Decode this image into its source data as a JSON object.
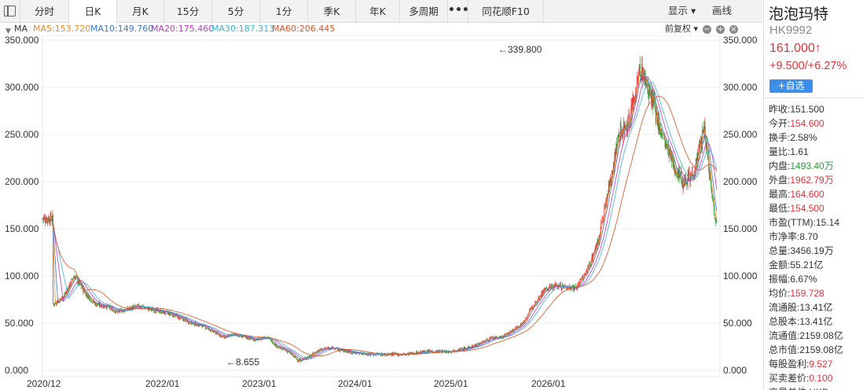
{
  "toolbar": {
    "tabs": [
      {
        "label": "分时",
        "active": false
      },
      {
        "label": "日K",
        "active": true
      },
      {
        "label": "月K",
        "active": false
      },
      {
        "label": "15分",
        "active": false
      },
      {
        "label": "5分",
        "active": false
      },
      {
        "label": "1分",
        "active": false
      },
      {
        "label": "季K",
        "active": false
      },
      {
        "label": "年K",
        "active": false
      },
      {
        "label": "多周期",
        "active": false
      }
    ],
    "more_label": "•••",
    "f10_label": "同花顺F10",
    "display_label": "显示 ▾",
    "draw_label": "画线"
  },
  "ma_bar": {
    "label": "MA",
    "items": [
      {
        "text": "MA5:153.720",
        "color": "#f08a24"
      },
      {
        "text": "MA10:149.760",
        "color": "#3a7bd5"
      },
      {
        "text": "MA20:175.460",
        "color": "#c03ac0"
      },
      {
        "text": "MA30:187.313",
        "color": "#38b6d8"
      },
      {
        "text": "MA60:206.445",
        "color": "#e0501e"
      }
    ],
    "adjust_label": "前复权 ▾",
    "zoom_out": "−",
    "zoom_in": "+",
    "close": "×"
  },
  "chart_data": {
    "type": "candlestick",
    "y_ticks": [
      "350.000",
      "300.000",
      "250.000",
      "200.000",
      "150.000",
      "100.000",
      "50.000",
      "0.000"
    ],
    "ylim": [
      0,
      350
    ],
    "x_ticks": [
      "2020/12",
      "2022/01",
      "2023/01",
      "2024/01",
      "2025/01",
      "2026/01"
    ],
    "annotations": {
      "max_label": "←339.800",
      "max_value": 339.8,
      "min_label": "←8.655",
      "min_value": 8.655
    },
    "series_close_approx": [
      {
        "x": "2020/12",
        "y": 70
      },
      {
        "x": "2021/02",
        "y": 100
      },
      {
        "x": "2021/04",
        "y": 70
      },
      {
        "x": "2021/06",
        "y": 62
      },
      {
        "x": "2021/09",
        "y": 65
      },
      {
        "x": "2022/01",
        "y": 50
      },
      {
        "x": "2022/04",
        "y": 35
      },
      {
        "x": "2022/07",
        "y": 32
      },
      {
        "x": "2022/10",
        "y": 20
      },
      {
        "x": "2022/11",
        "y": 10
      },
      {
        "x": "2023/01",
        "y": 22
      },
      {
        "x": "2023/06",
        "y": 17
      },
      {
        "x": "2024/01",
        "y": 20
      },
      {
        "x": "2024/06",
        "y": 35
      },
      {
        "x": "2024/09",
        "y": 70
      },
      {
        "x": "2024/12",
        "y": 88
      },
      {
        "x": "2025/03",
        "y": 135
      },
      {
        "x": "2025/05",
        "y": 250
      },
      {
        "x": "2025/07",
        "y": 320
      },
      {
        "x": "2025/09",
        "y": 250
      },
      {
        "x": "2025/11",
        "y": 200
      },
      {
        "x": "2026/01",
        "y": 255
      },
      {
        "x": "2026/02",
        "y": 161
      }
    ],
    "colors": {
      "up": "#e2313b",
      "down": "#2a9d3a"
    }
  },
  "stock": {
    "name": "泡泡玛特",
    "code": "HK9992",
    "price": "161.000↑",
    "change": "+9.500/+6.27%",
    "add_watch": "+自选",
    "stats": [
      {
        "label": "昨收:",
        "value": "151.500",
        "cls": ""
      },
      {
        "label": "今开:",
        "value": "154.600",
        "cls": "v-red"
      },
      {
        "label": "换手:",
        "value": "2.58%",
        "cls": ""
      },
      {
        "label": "量比:",
        "value": "1.61",
        "cls": ""
      },
      {
        "label": "内盘:",
        "value": "1493.40万",
        "cls": "v-green"
      },
      {
        "label": "外盘:",
        "value": "1962.79万",
        "cls": "v-red"
      },
      {
        "label": "最高:",
        "value": "164.600",
        "cls": "v-red"
      },
      {
        "label": "最低:",
        "value": "154.500",
        "cls": "v-red"
      },
      {
        "label": "市盈(TTM):",
        "value": "15.14",
        "cls": ""
      },
      {
        "label": "市净率:",
        "value": "8.70",
        "cls": ""
      },
      {
        "label": "总量:",
        "value": "3456.19万",
        "cls": ""
      },
      {
        "label": "金额:",
        "value": "55.21亿",
        "cls": ""
      },
      {
        "label": "振幅:",
        "value": "6.67%",
        "cls": ""
      },
      {
        "label": "均价:",
        "value": "159.728",
        "cls": "v-red"
      },
      {
        "label": "流通股:",
        "value": "13.41亿",
        "cls": ""
      },
      {
        "label": "总股本:",
        "value": "13.41亿",
        "cls": ""
      },
      {
        "label": "流通值:",
        "value": "2159.08亿",
        "cls": ""
      },
      {
        "label": "总市值:",
        "value": "2159.08亿",
        "cls": ""
      },
      {
        "label": "每股盈利:",
        "value": "9.527",
        "cls": "v-red"
      },
      {
        "label": "买卖差价:",
        "value": "0.100",
        "cls": "v-red"
      },
      {
        "label": "交易单位:",
        "value": "HKD",
        "cls": ""
      }
    ]
  }
}
